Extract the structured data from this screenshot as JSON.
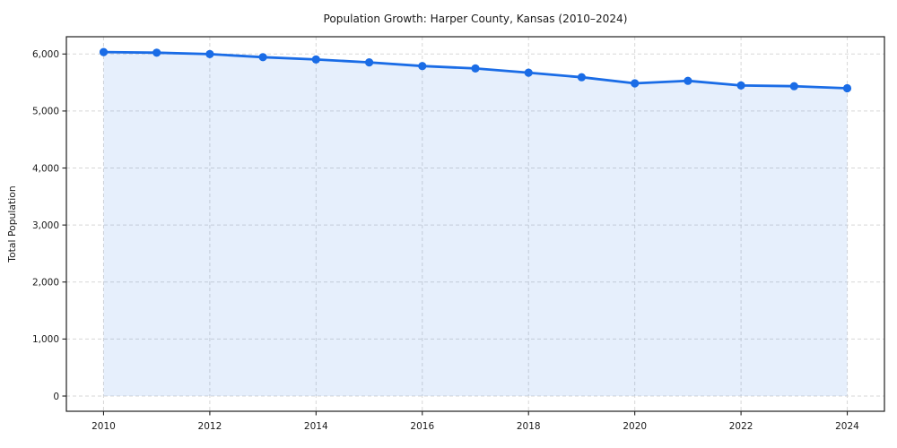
{
  "chart_data": {
    "type": "area",
    "title": "Population Growth: Harper County, Kansas (2010–2024)",
    "xlabel": "",
    "ylabel": "Total Population",
    "x": [
      2010,
      2011,
      2012,
      2013,
      2014,
      2015,
      2016,
      2017,
      2018,
      2019,
      2020,
      2021,
      2022,
      2023,
      2024
    ],
    "series": [
      {
        "name": "Total Population",
        "values": [
          6034,
          6024,
          5998,
          5944,
          5904,
          5853,
          5789,
          5747,
          5673,
          5593,
          5485,
          5530,
          5448,
          5436,
          5400
        ]
      }
    ],
    "xlim": [
      2009.3,
      2024.7
    ],
    "ylim": [
      -267,
      6303
    ],
    "xticks": {
      "values": [
        2010,
        2012,
        2014,
        2016,
        2018,
        2020,
        2022,
        2024
      ],
      "labels": [
        "2010",
        "2012",
        "2014",
        "2016",
        "2018",
        "2020",
        "2022",
        "2024"
      ]
    },
    "yticks": {
      "values": [
        0,
        1000,
        2000,
        3000,
        4000,
        5000,
        6000
      ],
      "labels": [
        "0",
        "1,000",
        "2,000",
        "3,000",
        "4,000",
        "5,000",
        "6,000"
      ]
    },
    "grid": true,
    "legend": "none",
    "colors": {
      "line": "#1a6ce6",
      "fill_opacity": 0.11,
      "grid": "#d7d7d7",
      "spine": "#1f1f1f",
      "text": "#1a1a1a"
    }
  }
}
